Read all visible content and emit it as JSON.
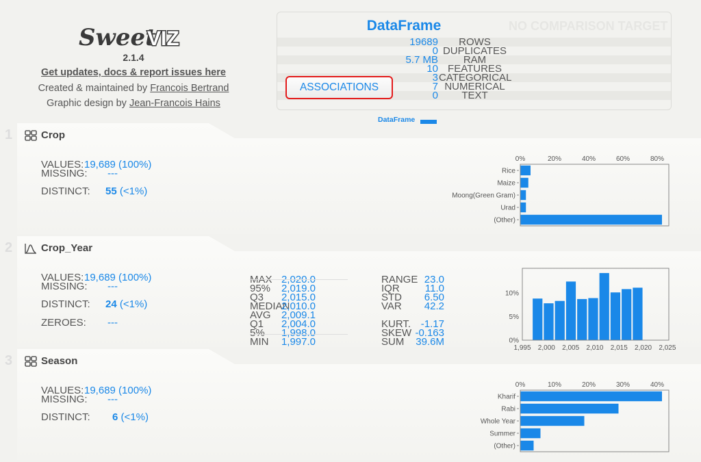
{
  "header": {
    "logo_text": "SweetVIZ",
    "version": "2.1.4",
    "updates_link": "Get updates, docs & report issues here",
    "created_prefix": "Created & maintained by ",
    "created_author": "Francois Bertrand",
    "design_prefix": "Graphic design by ",
    "design_author": "Jean-Francois Hains"
  },
  "summary": {
    "title": "DataFrame",
    "comparison": "NO COMPARISON TARGET",
    "associations_label": "ASSOCIATIONS",
    "legend_label": "DataFrame",
    "rows": [
      {
        "value": "19689",
        "label": "ROWS"
      },
      {
        "value": "0",
        "label": "DUPLICATES"
      },
      {
        "value": "5.7 MB",
        "label": "RAM"
      },
      {
        "value": "10",
        "label": "FEATURES"
      },
      {
        "value": "3",
        "label": "CATEGORICAL"
      },
      {
        "value": "7",
        "label": "NUMERICAL"
      },
      {
        "value": "0",
        "label": "TEXT"
      }
    ]
  },
  "colors": {
    "accent": "#1a88e8",
    "border_highlight": "#e31a1a"
  },
  "features": [
    {
      "num": "1",
      "name": "Crop",
      "icon": "categorical-grid-icon",
      "values_label": "VALUES:",
      "values": "19,689 (100%)",
      "missing_label": "MISSING:",
      "missing": "---",
      "distinct_label": "DISTINCT:",
      "distinct": "55",
      "distinct_pct": "(<1%)"
    },
    {
      "num": "2",
      "name": "Crop_Year",
      "icon": "numerical-curve-icon",
      "values_label": "VALUES:",
      "values": "19,689 (100%)",
      "missing_label": "MISSING:",
      "missing": "---",
      "distinct_label": "DISTINCT:",
      "distinct": "24",
      "distinct_pct": "(<1%)",
      "zeroes_label": "ZEROES:",
      "zeroes": "---",
      "quantiles": [
        {
          "label": "MAX",
          "value": "2,020.0"
        },
        {
          "label": "95%",
          "value": "2,019.0"
        },
        {
          "label": "Q3",
          "value": "2,015.0"
        },
        {
          "label": "MEDIAN",
          "value": "2,010.0"
        },
        {
          "label": "AVG",
          "value": "2,009.1"
        },
        {
          "label": "Q1",
          "value": "2,004.0"
        },
        {
          "label": "5%",
          "value": "1,998.0"
        },
        {
          "label": "MIN",
          "value": "1,997.0"
        }
      ],
      "moments": [
        {
          "label": "RANGE",
          "value": "23.0"
        },
        {
          "label": "IQR",
          "value": "11.0"
        },
        {
          "label": "STD",
          "value": "6.50"
        },
        {
          "label": "VAR",
          "value": "42.2"
        },
        {
          "label": "KURT.",
          "value": "-1.17"
        },
        {
          "label": "SKEW",
          "value": "-0.163"
        },
        {
          "label": "SUM",
          "value": "39.6M"
        }
      ]
    },
    {
      "num": "3",
      "name": "Season",
      "icon": "categorical-grid-icon",
      "values_label": "VALUES:",
      "values": "19,689 (100%)",
      "missing_label": "MISSING:",
      "missing": "---",
      "distinct_label": "DISTINCT:",
      "distinct": "6",
      "distinct_pct": "(<1%)"
    }
  ],
  "chart_data": [
    {
      "type": "bar",
      "orientation": "horizontal",
      "categories": [
        "Rice",
        "Maize",
        "Moong(Green Gram)",
        "Urad",
        "(Other)"
      ],
      "values": [
        6.0,
        4.7,
        3.3,
        3.3,
        82.8
      ],
      "xlim": [
        0,
        86.8
      ],
      "xticks": [
        0,
        20,
        40,
        60,
        80
      ],
      "tick_format": "%",
      "grid": false
    },
    {
      "type": "bar",
      "subtype": "histogram",
      "bin_edges": [
        1997,
        1999.3,
        2001.6,
        2003.9,
        2006.2,
        2008.5,
        2010.8,
        2013.1,
        2015.4,
        2017.7,
        2020
      ],
      "values": [
        8.8,
        7.8,
        8.3,
        12.4,
        8.7,
        8.9,
        14.2,
        10.1,
        10.8,
        11.1
      ],
      "xlim": [
        1995,
        2025.3
      ],
      "ylim": [
        0,
        15.2
      ],
      "xticks": [
        1995,
        2000,
        2005,
        2010,
        2015,
        2020,
        2025
      ],
      "xtick_labels": [
        "1,995",
        "2,000",
        "2,005",
        "2,010",
        "2,015",
        "2,020",
        "2,025"
      ],
      "yticks": [
        0,
        5,
        10
      ],
      "ytick_labels": [
        "0%",
        "5%",
        "10%"
      ],
      "grid": false
    },
    {
      "type": "bar",
      "orientation": "horizontal",
      "categories": [
        "Kharif",
        "Rabi",
        "Whole Year",
        "Summer",
        "(Other)"
      ],
      "values": [
        41.4,
        28.7,
        18.7,
        5.9,
        3.9
      ],
      "xlim": [
        0,
        43.4
      ],
      "xticks": [
        0,
        10,
        20,
        30,
        40
      ],
      "tick_format": "%",
      "grid": false
    }
  ]
}
